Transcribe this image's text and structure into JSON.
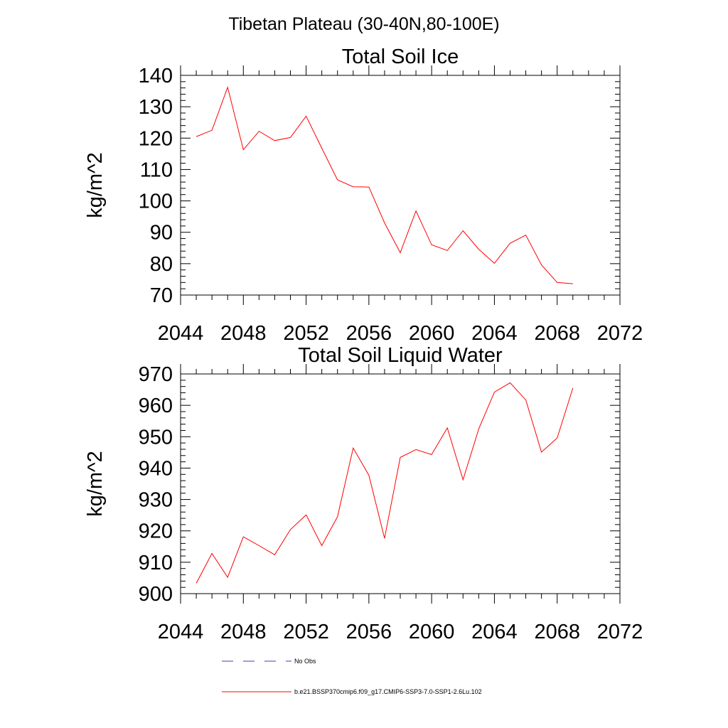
{
  "figure": {
    "main_title": "Tibetan Plateau (30-40N,80-100E)"
  },
  "chart_data": [
    {
      "type": "line",
      "title": "Total Soil Ice",
      "xlabel": "",
      "ylabel": "kg/m^2",
      "xlim": [
        2044,
        2072
      ],
      "ylim": [
        70,
        140
      ],
      "xticks": [
        2044,
        2048,
        2052,
        2056,
        2060,
        2064,
        2068,
        2072
      ],
      "yticks": [
        70,
        80,
        90,
        100,
        110,
        120,
        130,
        140
      ],
      "grid": false,
      "x": [
        2045,
        2046,
        2047,
        2048,
        2049,
        2050,
        2051,
        2052,
        2053,
        2054,
        2055,
        2056,
        2057,
        2058,
        2059,
        2060,
        2061,
        2062,
        2063,
        2064,
        2065,
        2066,
        2067,
        2068,
        2069
      ],
      "series": [
        {
          "name": "b.e21.BSSP370cmip6.f09_g17.CMIP6-SSP3-7.0-SSP1-2.6Lu.102",
          "color": "#ff0000",
          "values": [
            120.5,
            122.5,
            136.2,
            116.3,
            122.2,
            119.2,
            120.2,
            127.0,
            116.8,
            106.7,
            104.5,
            104.4,
            93.0,
            83.5,
            96.8,
            86.0,
            84.2,
            90.5,
            84.6,
            80.1,
            86.5,
            89.1,
            79.6,
            74.0,
            73.6
          ]
        }
      ]
    },
    {
      "type": "line",
      "title": "Total Soil Liquid Water",
      "xlabel": "",
      "ylabel": "kg/m^2",
      "xlim": [
        2044,
        2072
      ],
      "ylim": [
        900,
        970
      ],
      "xticks": [
        2044,
        2048,
        2052,
        2056,
        2060,
        2064,
        2068,
        2072
      ],
      "yticks": [
        900,
        910,
        920,
        930,
        940,
        950,
        960,
        970
      ],
      "grid": false,
      "x": [
        2045,
        2046,
        2047,
        2048,
        2049,
        2050,
        2051,
        2052,
        2053,
        2054,
        2055,
        2056,
        2057,
        2058,
        2059,
        2060,
        2061,
        2062,
        2063,
        2064,
        2065,
        2066,
        2067,
        2068,
        2069
      ],
      "series": [
        {
          "name": "b.e21.BSSP370cmip6.f09_g17.CMIP6-SSP3-7.0-SSP1-2.6Lu.102",
          "color": "#ff0000",
          "values": [
            903.3,
            912.8,
            905.2,
            918.1,
            915.3,
            912.4,
            920.4,
            925.1,
            915.3,
            924.5,
            946.4,
            937.7,
            917.6,
            943.4,
            945.9,
            944.3,
            952.8,
            936.3,
            952.5,
            964.2,
            967.2,
            961.7,
            945.1,
            949.6,
            965.5
          ]
        }
      ]
    }
  ],
  "legend": {
    "placement": "bottom",
    "entries": [
      {
        "label": "No Obs",
        "color": "#3c3cbe",
        "style": "dashed"
      },
      {
        "label": "b.e21.BSSP370cmip6.f09_g17.CMIP6-SSP3-7.0-SSP1-2.6Lu.102",
        "color": "#ff0000",
        "style": "solid"
      }
    ]
  }
}
